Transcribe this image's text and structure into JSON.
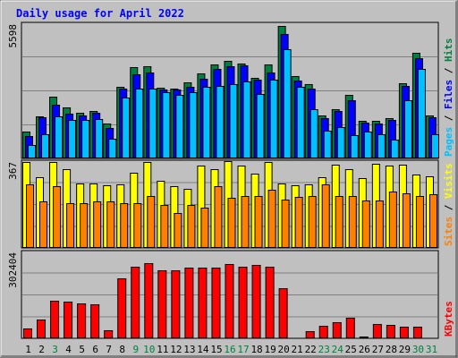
{
  "chart_data": {
    "type": "bar",
    "title": "Daily usage for April 2022",
    "categories": [
      "1",
      "2",
      "3",
      "4",
      "5",
      "6",
      "7",
      "8",
      "9",
      "10",
      "11",
      "12",
      "13",
      "14",
      "15",
      "16",
      "17",
      "18",
      "19",
      "20",
      "21",
      "22",
      "23",
      "24",
      "25",
      "26",
      "27",
      "28",
      "29",
      "30",
      "31"
    ],
    "weekend_days": [
      "3",
      "9",
      "10",
      "16",
      "17",
      "23",
      "24",
      "30",
      "31"
    ],
    "panels": [
      {
        "id": "hits",
        "max_label": "5598",
        "ymax": 5598,
        "legend": [
          {
            "name": "Pages",
            "color": "#00c0ff"
          },
          {
            "name": "Files",
            "color": "#0000ff"
          },
          {
            "name": "Hits",
            "color": "#008040"
          }
        ],
        "series": [
          {
            "name": "Hits",
            "color": "#008040",
            "values": [
              1120,
              1780,
              2610,
              2150,
              1910,
              1980,
              1460,
              3000,
              3820,
              3870,
              2980,
              2940,
              3200,
              3560,
              3960,
              4080,
              3980,
              3390,
              3950,
              5550,
              3470,
              3130,
              1820,
              2050,
              2670,
              1570,
              1580,
              1690,
              3160,
              4450,
              1820
            ]
          },
          {
            "name": "Files",
            "color": "#0000ff",
            "values": [
              950,
              1720,
              2270,
              1890,
              1790,
              1930,
              1270,
              2940,
              3550,
              3600,
              2890,
              2910,
              3010,
              3350,
              3760,
              3880,
              3910,
              3290,
              3610,
              5240,
              3250,
              2930,
              1700,
              1980,
              2450,
              1510,
              1470,
              1630,
              3060,
              4210,
              1730
            ]
          },
          {
            "name": "Pages",
            "color": "#00c0ff",
            "values": [
              570,
              1010,
              1760,
              1610,
              1630,
              1660,
              820,
              2550,
              2930,
              2930,
              2770,
              2660,
              2770,
              3010,
              3050,
              3100,
              3240,
              2700,
              3290,
              4600,
              2990,
              2060,
              1150,
              1330,
              980,
              1140,
              1030,
              780,
              2440,
              3770,
              1000
            ]
          }
        ]
      },
      {
        "id": "visits",
        "max_label": "367",
        "ymax": 367,
        "legend": [
          {
            "name": "Sites",
            "color": "#ff8000"
          },
          {
            "name": "Visits",
            "color": "#ffff00"
          }
        ],
        "series": [
          {
            "name": "Visits",
            "color": "#ffff00",
            "values": [
              370,
              305,
              370,
              340,
              280,
              280,
              270,
              275,
              325,
              370,
              290,
              265,
              255,
              355,
              340,
              375,
              355,
              320,
              370,
              280,
              270,
              275,
              305,
              360,
              340,
              300,
              365,
              355,
              360,
              315,
              310
            ]
          },
          {
            "name": "Sites",
            "color": "#ff8000",
            "values": [
              275,
              200,
              265,
              195,
              195,
              200,
              200,
              195,
              195,
              225,
              185,
              150,
              185,
              175,
              265,
              215,
              225,
              225,
              250,
              210,
              220,
              225,
              275,
              225,
              225,
              205,
              205,
              245,
              235,
              225,
              230
            ]
          }
        ]
      },
      {
        "id": "kbytes",
        "max_label": "302404",
        "ymax": 302404,
        "legend": [
          {
            "name": "KBytes",
            "color": "#ff0000"
          }
        ],
        "series": [
          {
            "name": "KBytes",
            "color": "#ff0000",
            "values": [
              36000,
              68000,
              133000,
              131000,
              123000,
              120000,
              29000,
              213000,
              256000,
              268000,
              242000,
              242000,
              252000,
              252000,
              252000,
              264000,
              256000,
              260000,
              254000,
              178000,
              0,
              25000,
              43000,
              57000,
              72000,
              7000,
              52000,
              47000,
              42000,
              42000,
              0
            ]
          }
        ]
      }
    ],
    "colors": {
      "background": "#c0c0c0",
      "grid": "#808080",
      "title": "#0000ff",
      "weekday_label": "#000000",
      "weekend_label": "#008040"
    }
  }
}
